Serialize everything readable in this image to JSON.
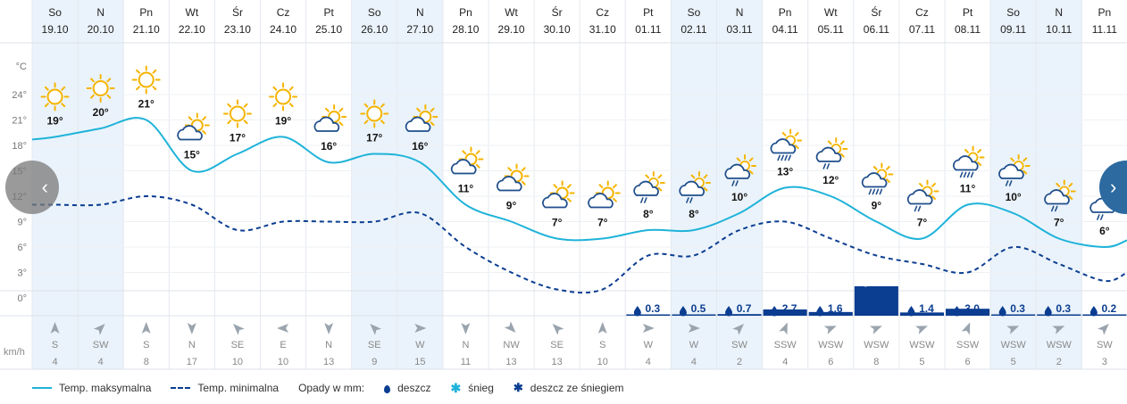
{
  "chart_data": {
    "type": "line",
    "days": [
      {
        "name": "So",
        "date": "19.10",
        "icon": "sun-icon",
        "tmax": 19,
        "tmin": 11,
        "precip": null,
        "wind_dir": "S",
        "wind_speed": 4,
        "weekend": true
      },
      {
        "name": "N",
        "date": "20.10",
        "icon": "sun-icon",
        "tmax": 20,
        "tmin": 11,
        "precip": null,
        "wind_dir": "SW",
        "wind_speed": 4,
        "weekend": true
      },
      {
        "name": "Pn",
        "date": "21.10",
        "icon": "sun-icon",
        "tmax": 21,
        "tmin": 12,
        "precip": null,
        "wind_dir": "S",
        "wind_speed": 8,
        "weekend": false
      },
      {
        "name": "Wt",
        "date": "22.10",
        "icon": "partly-cloudy-icon",
        "tmax": 15,
        "tmin": 11,
        "precip": null,
        "wind_dir": "N",
        "wind_speed": 17,
        "weekend": false
      },
      {
        "name": "Śr",
        "date": "23.10",
        "icon": "sun-icon",
        "tmax": 17,
        "tmin": 8,
        "precip": null,
        "wind_dir": "SE",
        "wind_speed": 10,
        "weekend": false
      },
      {
        "name": "Cz",
        "date": "24.10",
        "icon": "sun-icon",
        "tmax": 19,
        "tmin": 9,
        "precip": null,
        "wind_dir": "E",
        "wind_speed": 10,
        "weekend": false
      },
      {
        "name": "Pt",
        "date": "25.10",
        "icon": "partly-cloudy-icon",
        "tmax": 16,
        "tmin": 9,
        "precip": null,
        "wind_dir": "N",
        "wind_speed": 13,
        "weekend": false
      },
      {
        "name": "So",
        "date": "26.10",
        "icon": "sun-icon",
        "tmax": 17,
        "tmin": 9,
        "precip": null,
        "wind_dir": "SE",
        "wind_speed": 9,
        "weekend": true
      },
      {
        "name": "N",
        "date": "27.10",
        "icon": "partly-cloudy-icon",
        "tmax": 16,
        "tmin": 10,
        "precip": null,
        "wind_dir": "W",
        "wind_speed": 15,
        "weekend": true
      },
      {
        "name": "Pn",
        "date": "28.10",
        "icon": "partly-cloudy-icon",
        "tmax": 11,
        "tmin": 6,
        "precip": null,
        "wind_dir": "N",
        "wind_speed": 11,
        "weekend": false
      },
      {
        "name": "Wt",
        "date": "29.10",
        "icon": "partly-cloudy-icon",
        "tmax": 9,
        "tmin": 3,
        "precip": null,
        "wind_dir": "NW",
        "wind_speed": 13,
        "weekend": false
      },
      {
        "name": "Śr",
        "date": "30.10",
        "icon": "partly-cloudy-icon",
        "tmax": 7,
        "tmin": 1,
        "precip": null,
        "wind_dir": "SE",
        "wind_speed": 13,
        "weekend": false
      },
      {
        "name": "Cz",
        "date": "31.10",
        "icon": "partly-cloudy-icon",
        "tmax": 7,
        "tmin": 1,
        "precip": null,
        "wind_dir": "S",
        "wind_speed": 10,
        "weekend": false
      },
      {
        "name": "Pt",
        "date": "01.11",
        "icon": "light-rain-icon",
        "tmax": 8,
        "tmin": 5,
        "precip": "0.3",
        "wind_dir": "W",
        "wind_speed": 4,
        "weekend": false
      },
      {
        "name": "So",
        "date": "02.11",
        "icon": "light-rain-icon",
        "tmax": 8,
        "tmin": 5,
        "precip": "0.5",
        "wind_dir": "W",
        "wind_speed": 4,
        "weekend": true
      },
      {
        "name": "N",
        "date": "03.11",
        "icon": "light-rain-icon",
        "tmax": 10,
        "tmin": 8,
        "precip": "0.7",
        "wind_dir": "SW",
        "wind_speed": 2,
        "weekend": true
      },
      {
        "name": "Pn",
        "date": "04.11",
        "icon": "rain-icon",
        "tmax": 13,
        "tmin": 9,
        "precip": "2.7",
        "wind_dir": "SSW",
        "wind_speed": 4,
        "weekend": false
      },
      {
        "name": "Wt",
        "date": "05.11",
        "icon": "light-rain-icon",
        "tmax": 12,
        "tmin": 7,
        "precip": "1.6",
        "wind_dir": "WSW",
        "wind_speed": 6,
        "weekend": false
      },
      {
        "name": "Śr",
        "date": "06.11",
        "icon": "rain-icon",
        "tmax": 9,
        "tmin": 5,
        "precip": "12.7",
        "wind_dir": "WSW",
        "wind_speed": 8,
        "weekend": false
      },
      {
        "name": "Cz",
        "date": "07.11",
        "icon": "light-rain-icon",
        "tmax": 7,
        "tmin": 4,
        "precip": "1.4",
        "wind_dir": "WSW",
        "wind_speed": 5,
        "weekend": false
      },
      {
        "name": "Pt",
        "date": "08.11",
        "icon": "rain-icon",
        "tmax": 11,
        "tmin": 3,
        "precip": "3.0",
        "wind_dir": "SSW",
        "wind_speed": 6,
        "weekend": false
      },
      {
        "name": "So",
        "date": "09.11",
        "icon": "light-rain-icon",
        "tmax": 10,
        "tmin": 6,
        "precip": "0.3",
        "wind_dir": "WSW",
        "wind_speed": 5,
        "weekend": true
      },
      {
        "name": "N",
        "date": "10.11",
        "icon": "light-rain-icon",
        "tmax": 7,
        "tmin": 4,
        "precip": "0.3",
        "wind_dir": "WSW",
        "wind_speed": 2,
        "weekend": true
      },
      {
        "name": "Pn",
        "date": "11.11",
        "icon": "light-rain-icon",
        "tmax": 6,
        "tmin": 2,
        "precip": "0.2",
        "wind_dir": "SW",
        "wind_speed": 3,
        "weekend": false
      }
    ],
    "y_axis": {
      "unit": "°C",
      "ticks": [
        0,
        3,
        6,
        9,
        12,
        15,
        18,
        21,
        24
      ]
    },
    "wind_unit": "km/h",
    "legend": {
      "tmax": "Temp. maksymalna",
      "tmin": "Temp. minimalna",
      "precip_title": "Opady w mm:",
      "rain": "deszcz",
      "snow": "śnieg",
      "mix": "deszcz ze śniegiem"
    },
    "colors": {
      "tmax": "#1fb3d9",
      "tmin": "#0b3d91",
      "bar": "#0b3d91",
      "weekend": "#eaf3fb",
      "sun": "#f5b400"
    }
  }
}
